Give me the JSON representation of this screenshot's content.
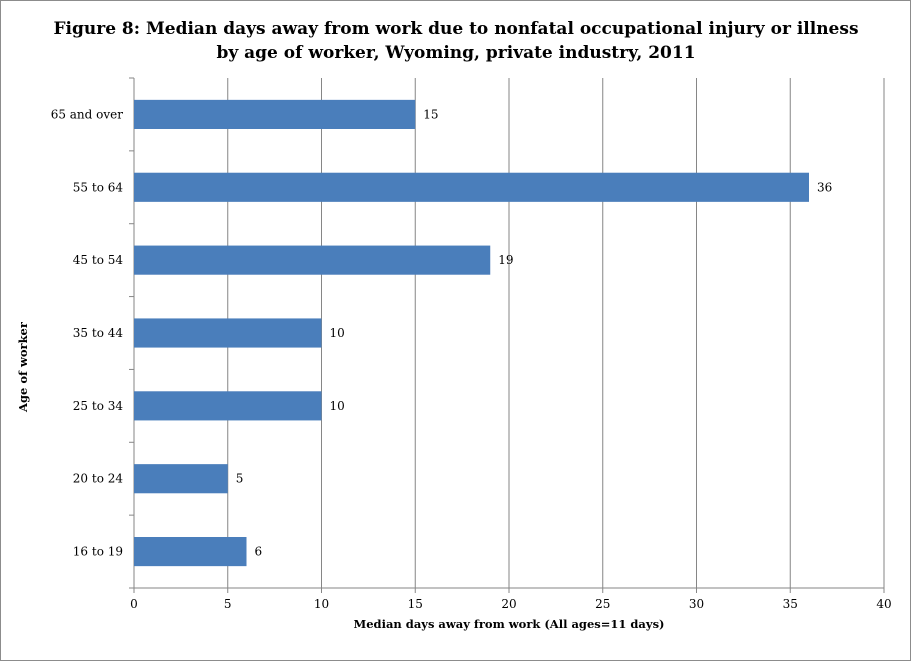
{
  "chart_data": {
    "type": "bar",
    "orientation": "horizontal",
    "title": "Figure 8: Median days away from work due to nonfatal occupational injury or illness by age of worker, Wyoming, private industry, 2011",
    "xlabel": "Median days away from work (All ages=11 days)",
    "ylabel": "Age of worker",
    "categories": [
      "65 and over",
      "55 to 64",
      "45 to 54",
      "35 to 44",
      "25 to 34",
      "20 to 24",
      "16 to 19"
    ],
    "values": [
      15,
      36,
      19,
      10,
      10,
      5,
      6
    ],
    "xlim": [
      0,
      40
    ],
    "xticks": [
      0,
      5,
      10,
      15,
      20,
      25,
      30,
      35,
      40
    ],
    "grid": "vertical",
    "legend": "none",
    "bar_color": "#4a7ebb"
  }
}
